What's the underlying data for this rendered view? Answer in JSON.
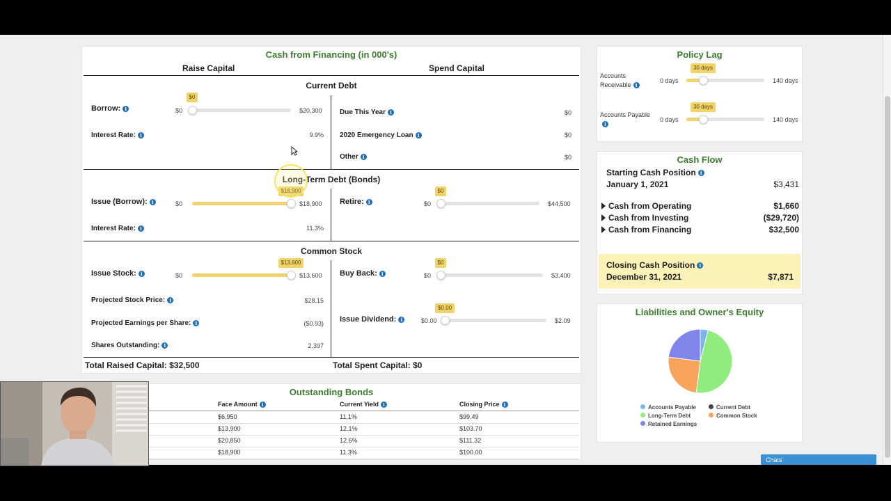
{
  "financing": {
    "title": "Cash from Financing (in 000's)",
    "raise_header": "Raise Capital",
    "spend_header": "Spend Capital",
    "current_debt": {
      "heading": "Current Debt",
      "borrow": {
        "label": "Borrow:",
        "min": "$0",
        "max": "$20,300",
        "value": "$0",
        "fraction": 0.0
      },
      "interest_rate": {
        "label": "Interest Rate:",
        "value": "9.9%"
      },
      "due_this_year": {
        "label": "Due This Year",
        "value": "$0"
      },
      "emergency_loan": {
        "label": "2020 Emergency Loan",
        "value": "$0"
      },
      "other": {
        "label": "Other",
        "value": "$0"
      }
    },
    "long_term_debt": {
      "heading": "Long-Term Debt (Bonds)",
      "issue": {
        "label": "Issue (Borrow):",
        "min": "$0",
        "max": "$18,900",
        "value": "$18,900",
        "fraction": 1.0
      },
      "interest_rate": {
        "label": "Interest Rate:",
        "value": "11.3%"
      },
      "retire": {
        "label": "Retire:",
        "min": "$0",
        "max": "$44,500",
        "value": "$0",
        "fraction": 0.0
      }
    },
    "common_stock": {
      "heading": "Common Stock",
      "issue_stock": {
        "label": "Issue Stock:",
        "min": "$0",
        "max": "$13,600",
        "value": "$13,600",
        "fraction": 1.0
      },
      "projected_price": {
        "label": "Projected Stock Price:",
        "value": "$28.15"
      },
      "projected_eps": {
        "label": "Projected Earnings per Share:",
        "value": "($0.93)"
      },
      "shares_outstanding": {
        "label": "Shares Outstanding:",
        "value": "2,397"
      },
      "buy_back": {
        "label": "Buy Back:",
        "min": "$0",
        "max": "$3,400",
        "value": "$0",
        "fraction": 0.0
      },
      "issue_dividend": {
        "label": "Issue Dividend:",
        "min": "$0.00",
        "max": "$2.09",
        "value": "$0.00",
        "fraction": 0.0
      }
    },
    "total_raised": "Total Raised Capital: $32,500",
    "total_spent": "Total Spent Capital: $0"
  },
  "bonds": {
    "title": "Outstanding Bonds",
    "headers": [
      "Face Amount",
      "Current Yield",
      "Closing Price"
    ],
    "rows": [
      [
        "$6,950",
        "11.1%",
        "$99.49"
      ],
      [
        "$13,900",
        "12.1%",
        "$103.70"
      ],
      [
        "$20,850",
        "12.6%",
        "$111.32"
      ],
      [
        "$18,900",
        "11.3%",
        "$100.00"
      ]
    ]
  },
  "policy_lag": {
    "title": "Policy Lag",
    "receivable": {
      "label_line1": "Accounts",
      "label_line2": "Receivable",
      "min": "0 days",
      "max": "140 days",
      "value": "30 days",
      "fraction": 0.214
    },
    "payable": {
      "label": "Accounts Payable",
      "min": "0 days",
      "max": "140 days",
      "value": "30 days",
      "fraction": 0.214
    }
  },
  "cash_flow": {
    "title": "Cash Flow",
    "starting_label": "Starting Cash Position",
    "starting_date": "January 1, 2021",
    "starting_value": "$3,431",
    "operating_label": "Cash from Operating",
    "operating_value": "$1,660",
    "investing_label": "Cash from Investing",
    "investing_value": "($29,720)",
    "financing_label": "Cash from Financing",
    "financing_value": "$32,500",
    "closing_label": "Closing Cash Position",
    "closing_date": "December 31, 2021",
    "closing_value": "$7,871"
  },
  "equity": {
    "title": "Liabilities and Owner's Equity",
    "legend": [
      {
        "name": "Accounts Payable",
        "color": "#7cb5ec"
      },
      {
        "name": "Current Debt",
        "color": "#434348"
      },
      {
        "name": "Long-Term Debt",
        "color": "#90ed7d"
      },
      {
        "name": "Common Stock",
        "color": "#f7a35c"
      },
      {
        "name": "Retained Earnings",
        "color": "#8085e9"
      }
    ],
    "shares": [
      4,
      0,
      48,
      25,
      23
    ]
  },
  "chats": {
    "label": "Chats"
  },
  "icons": {
    "info": "info-icon",
    "expand": "triangle-right-icon"
  }
}
